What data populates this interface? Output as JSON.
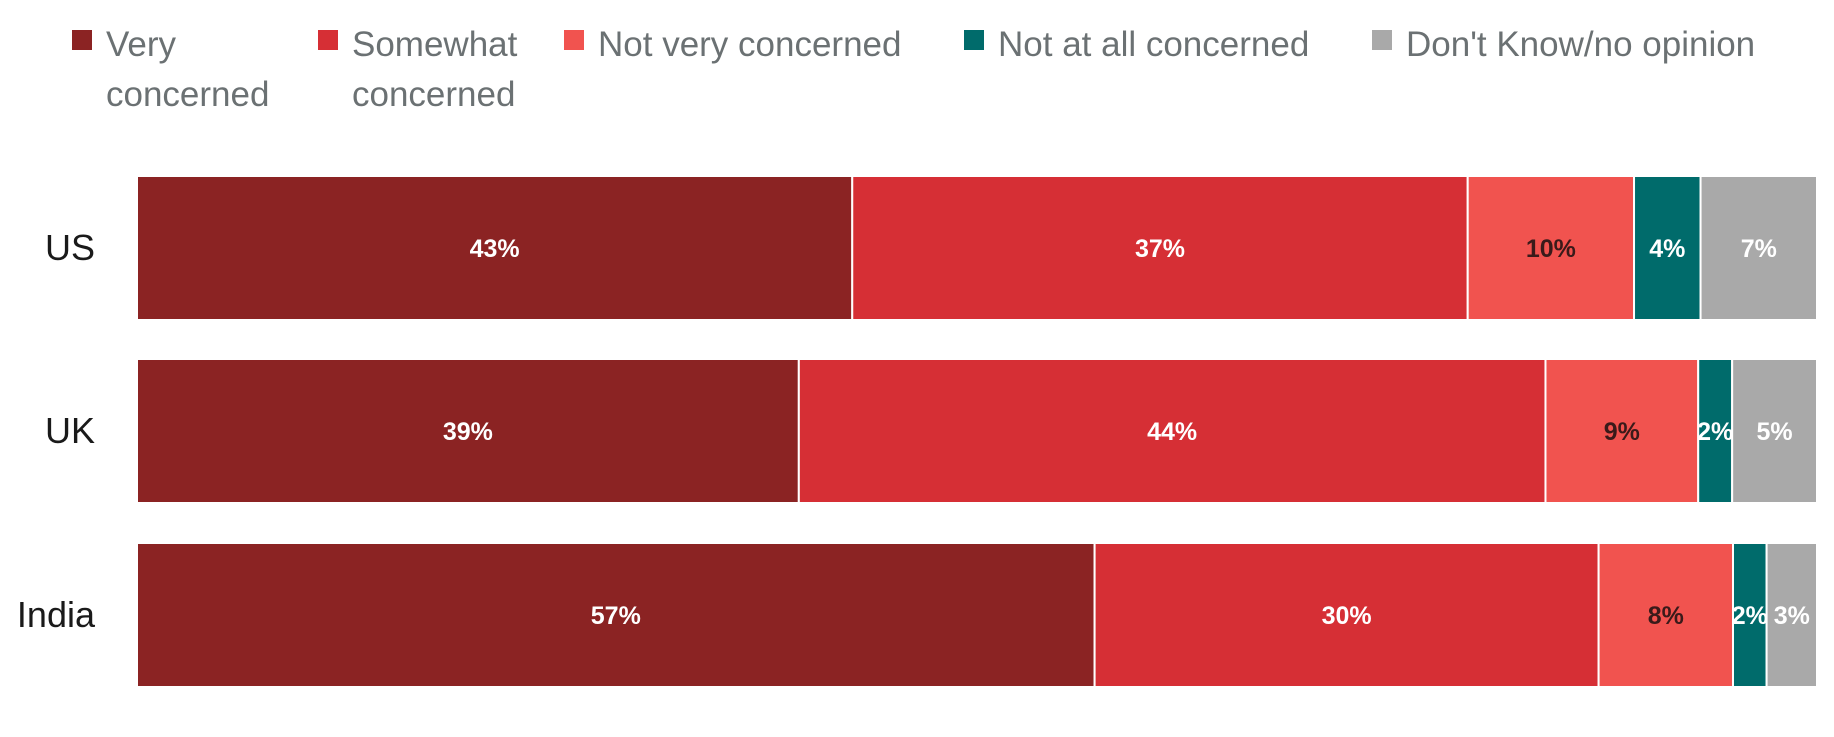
{
  "chart_data": {
    "type": "bar",
    "orientation": "horizontal",
    "stacked": true,
    "categories": [
      "US",
      "UK",
      "India"
    ],
    "series": [
      {
        "name": "Very concerned",
        "values": [
          43,
          39,
          57
        ],
        "labels": [
          "43%",
          "39%",
          "57%"
        ],
        "color": "#8B2323",
        "label_color": "#ffffff"
      },
      {
        "name": "Somewhat concerned",
        "values": [
          37,
          44,
          30
        ],
        "labels": [
          "37%",
          "44%",
          "30%"
        ],
        "color": "#D62F35",
        "label_color": "#ffffff"
      },
      {
        "name": "Not very concerned",
        "values": [
          10,
          9,
          8
        ],
        "labels": [
          "10%",
          "9%",
          "8%"
        ],
        "color": "#F1534F",
        "label_color": "#3a1a1a"
      },
      {
        "name": "Not at all concerned",
        "values": [
          4,
          2,
          2
        ],
        "labels": [
          "4%",
          "2%",
          "2%"
        ],
        "color": "#006B6B",
        "label_color": "#ffffff"
      },
      {
        "name": "Don't Know/no opinion",
        "values": [
          7,
          5,
          3
        ],
        "labels": [
          "7%",
          "5%",
          "3%"
        ],
        "color": "#A9A9A9",
        "label_color": "#ffffff"
      }
    ],
    "legend_position": "top",
    "grid": false,
    "title": "",
    "xlabel": "",
    "ylabel": ""
  }
}
